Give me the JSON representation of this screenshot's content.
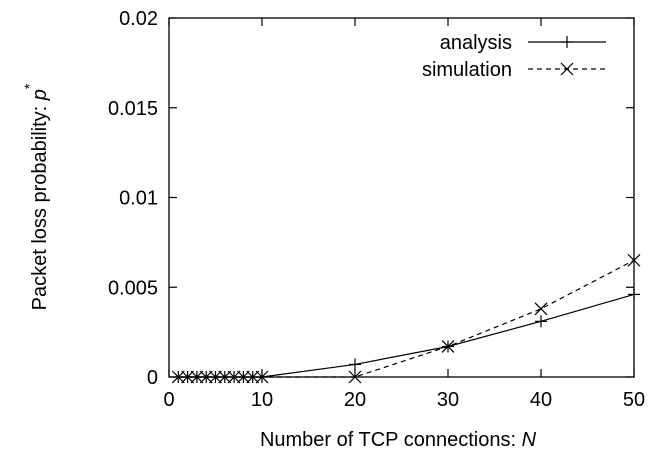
{
  "chart_data": {
    "type": "line",
    "xlabel": "Number of TCP connections: ",
    "xlabel_var": "N",
    "ylabel": "Packet loss probability: ",
    "ylabel_var": "p",
    "ylabel_sup": "*",
    "xlim": [
      0,
      50
    ],
    "ylim": [
      0,
      0.02
    ],
    "x_ticks": [
      0,
      10,
      20,
      30,
      40,
      50
    ],
    "x_tick_labels": [
      "0",
      "10",
      "20",
      "30",
      "40",
      "50"
    ],
    "y_ticks": [
      0,
      0.005,
      0.01,
      0.015,
      0.02
    ],
    "y_tick_labels": [
      "0",
      "0.005",
      "0.01",
      "0.015",
      "0.02"
    ],
    "grid": false,
    "legend_position": "top-right",
    "series": [
      {
        "name": "analysis",
        "line_style": "solid",
        "marker": "plus",
        "x": [
          1,
          2,
          3,
          4,
          5,
          6,
          7,
          8,
          9,
          10,
          20,
          30,
          40,
          50
        ],
        "y": [
          0,
          0,
          0,
          0,
          0,
          0,
          0,
          0,
          0,
          0,
          0.0007,
          0.0017,
          0.0031,
          0.0046
        ]
      },
      {
        "name": "simulation",
        "line_style": "dashed",
        "marker": "cross",
        "x": [
          1,
          2,
          3,
          4,
          5,
          6,
          7,
          8,
          9,
          10,
          20,
          30,
          40,
          50
        ],
        "y": [
          0,
          0,
          0,
          0,
          0,
          0,
          0,
          0,
          0,
          0,
          0,
          0.0017,
          0.0038,
          0.0065
        ]
      }
    ]
  }
}
